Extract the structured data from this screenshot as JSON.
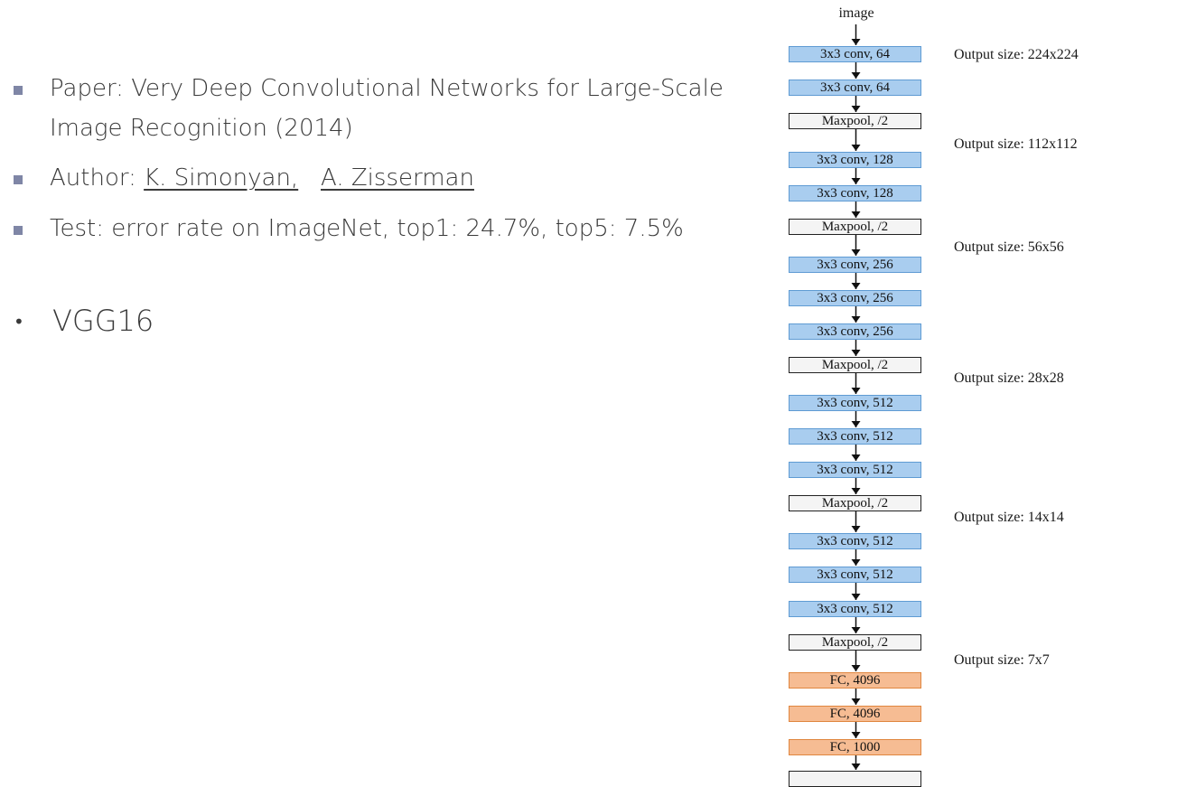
{
  "slide": {
    "bullets": [
      {
        "lines": [
          "Paper:  Very Deep Convolutional Networks for Large-Scale",
          "Image Recognition (2014)"
        ]
      },
      {
        "prefix": "Author:  ",
        "authors": [
          "K. Simonyan,",
          "A. Zisserman"
        ]
      },
      {
        "lines": [
          "Test: error rate on ImageNet,  top1: 24.7%,  top5: 7.5%"
        ]
      }
    ],
    "section_title": "VGG16",
    "bullet_color": "#7f86a6"
  },
  "diagram": {
    "input_label": "image",
    "layers": [
      {
        "label": "3x3 conv, 64",
        "kind": "conv"
      },
      {
        "label": "3x3 conv, 64",
        "kind": "conv"
      },
      {
        "label": "Maxpool, /2",
        "kind": "pool"
      },
      {
        "label": "3x3 conv, 128",
        "kind": "conv"
      },
      {
        "label": "3x3 conv, 128",
        "kind": "conv"
      },
      {
        "label": "Maxpool, /2",
        "kind": "pool"
      },
      {
        "label": "3x3 conv, 256",
        "kind": "conv"
      },
      {
        "label": "3x3 conv, 256",
        "kind": "conv"
      },
      {
        "label": "3x3 conv, 256",
        "kind": "conv"
      },
      {
        "label": "Maxpool, /2",
        "kind": "pool"
      },
      {
        "label": "3x3 conv, 512",
        "kind": "conv"
      },
      {
        "label": "3x3 conv, 512",
        "kind": "conv"
      },
      {
        "label": "3x3 conv, 512",
        "kind": "conv"
      },
      {
        "label": "Maxpool, /2",
        "kind": "pool"
      },
      {
        "label": "3x3 conv, 512",
        "kind": "conv"
      },
      {
        "label": "3x3 conv, 512",
        "kind": "conv"
      },
      {
        "label": "3x3 conv, 512",
        "kind": "conv"
      },
      {
        "label": "Maxpool, /2",
        "kind": "pool"
      },
      {
        "label": "FC, 4096",
        "kind": "fc"
      },
      {
        "label": "FC, 4096",
        "kind": "fc"
      },
      {
        "label": "FC, 1000",
        "kind": "fc"
      }
    ],
    "output_sizes": [
      "Output size: 224x224",
      "Output size: 112x112",
      "Output size: 56x56",
      "Output size: 28x28",
      "Output size: 14x14",
      "Output size: 7x7"
    ],
    "colors": {
      "conv_fill": "#a9cdef",
      "pool_fill": "#f4f4f4",
      "fc_fill": "#f6bc93"
    }
  }
}
